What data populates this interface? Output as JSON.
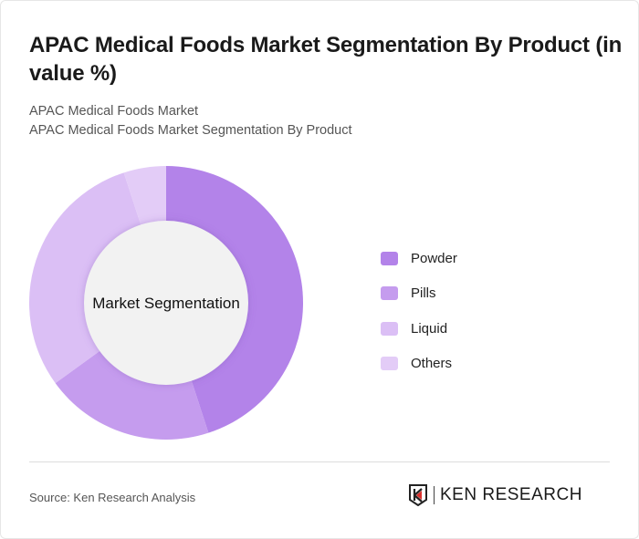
{
  "title": "APAC Medical Foods Market Segmentation By Product (in value %)",
  "subtitle1": "APAC Medical Foods Market",
  "subtitle2": "APAC Medical Foods Market Segmentation By Product",
  "chart_data": {
    "type": "pie",
    "donut": true,
    "center_label": "Market Segmentation",
    "categories": [
      "Powder",
      "Pills",
      "Liquid",
      "Others"
    ],
    "values": [
      45,
      20,
      30,
      5
    ],
    "colors": [
      "#b383e9",
      "#c59cee",
      "#dbbff5",
      "#e3ccf7"
    ],
    "legend_position": "right"
  },
  "source": "Source: Ken Research Analysis",
  "logo_text": "KEN RESEARCH"
}
